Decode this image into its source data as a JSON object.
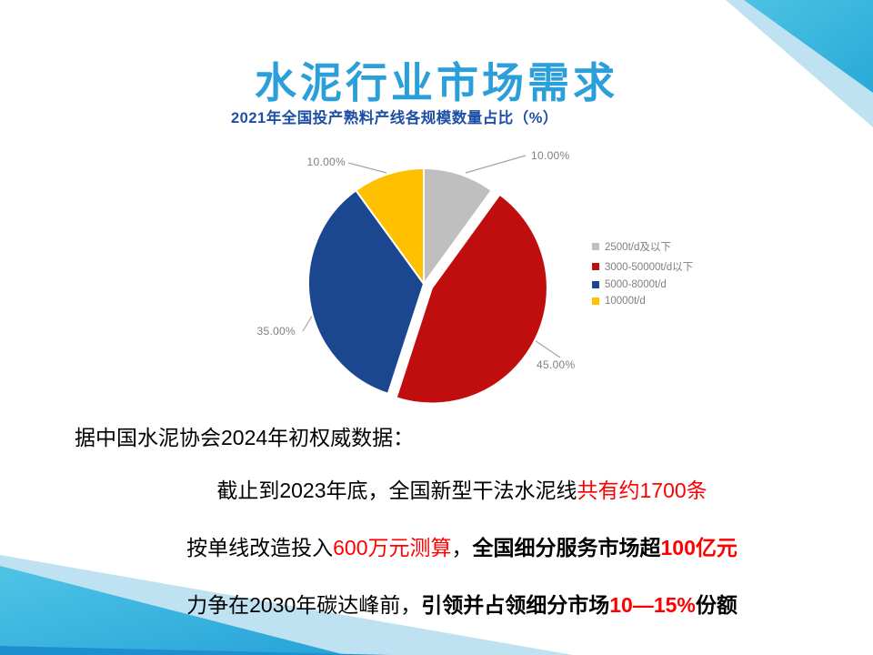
{
  "colors": {
    "title": "#2B9FD9",
    "chart_title": "#1E4FA5",
    "accent_red": "#FF0000"
  },
  "slide": {
    "title": "水泥行业市场需求"
  },
  "chart_data": {
    "type": "pie",
    "title": "2021年全国投产熟料产线各规模数量占比（%）",
    "direction": "clockwise",
    "start_angle_deg": 0,
    "legend_position": "right",
    "series": [
      {
        "label": "2500t/d及以下",
        "value": 10,
        "display": "10.00%",
        "color": "#BFBFBF",
        "explode": 0
      },
      {
        "label": "3000-50000t/d以下",
        "value": 45,
        "display": "45.00%",
        "color": "#C00E0E",
        "explode": 10
      },
      {
        "label": "5000-8000t/d",
        "value": 35,
        "display": "35.00%",
        "color": "#1B4690",
        "explode": 0
      },
      {
        "label": "10000t/d",
        "value": 10,
        "display": "10.00%",
        "color": "#FFC000",
        "explode": 0
      }
    ]
  },
  "body": {
    "line1": "据中国水泥协会2024年初权威数据：",
    "line2_a": "截止到2023年底，全国新型干法水泥线",
    "line2_b": "共有约1700条",
    "line3_a": "按单线改造投入",
    "line3_b": "600万元测算",
    "line3_c": "，",
    "line3_d": "全国细分服务市场超",
    "line3_e": "100亿元",
    "line4_a": "力争在2030年碳达峰前，",
    "line4_b": "引领并占领细分市场",
    "line4_c": "10—15%",
    "line4_d": "份额"
  }
}
